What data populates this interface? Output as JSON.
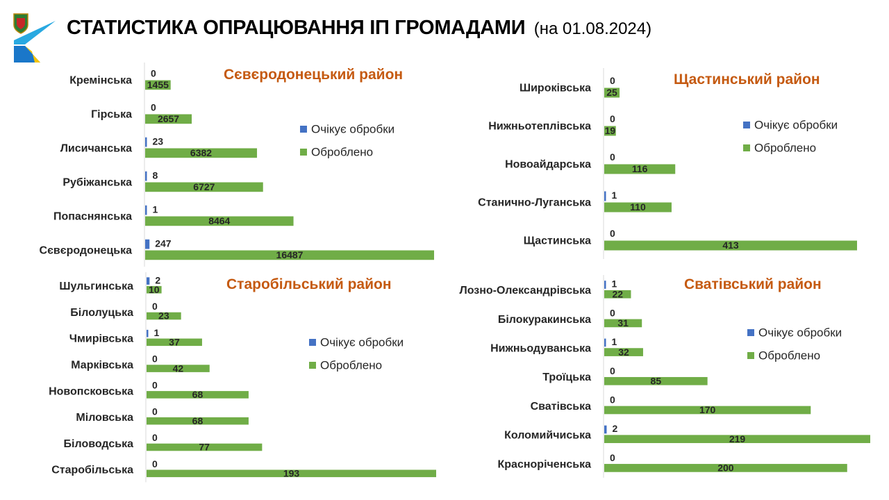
{
  "header": {
    "title": "СТАТИСТИКА ОПРАЦЮВАННЯ ІП ГРОМАДАМИ",
    "date_note": "(на 01.08.2024)"
  },
  "logo": {
    "icon": "regional-emblem-icon"
  },
  "colors": {
    "waiting": "#4472c4",
    "processed": "#70ad47",
    "title": "#c55a11",
    "axis": "#d9d9d9"
  },
  "chart_data": [
    {
      "type": "bar",
      "orientation": "horizontal",
      "title": "Сєвєродонецький район",
      "categories": [
        "Кремінська",
        "Гірська",
        "Лисичанська",
        "Рубіжанська",
        "Попаснянська",
        "Сєвєродонецька"
      ],
      "series": [
        {
          "name": "Очікує обробки",
          "values": [
            0,
            0,
            23,
            8,
            1,
            247
          ]
        },
        {
          "name": "Оброблено",
          "values": [
            1455,
            2657,
            6382,
            6727,
            8464,
            16487
          ]
        }
      ],
      "legend": "right",
      "grid": false
    },
    {
      "type": "bar",
      "orientation": "horizontal",
      "title": "Щастинський район",
      "categories": [
        "Широківська",
        "Нижньотеплівська",
        "Новоайдарська",
        "Станично-Луганська",
        "Щастинська"
      ],
      "series": [
        {
          "name": "Очікує обробки",
          "values": [
            0,
            0,
            0,
            1,
            0
          ]
        },
        {
          "name": "Оброблено",
          "values": [
            25,
            19,
            116,
            110,
            413
          ]
        }
      ],
      "legend": "right",
      "grid": false
    },
    {
      "type": "bar",
      "orientation": "horizontal",
      "title": "Старобільський район",
      "categories": [
        "Шульгинська",
        "Білолуцька",
        "Чмирівська",
        "Марківська",
        "Новопсковська",
        "Міловська",
        "Біловодська",
        "Старобільська"
      ],
      "series": [
        {
          "name": "Очікує обробки",
          "values": [
            2,
            0,
            1,
            0,
            0,
            0,
            0,
            0
          ]
        },
        {
          "name": "Оброблено",
          "values": [
            10,
            23,
            37,
            42,
            68,
            68,
            77,
            193
          ]
        }
      ],
      "legend": "right",
      "grid": false
    },
    {
      "type": "bar",
      "orientation": "horizontal",
      "title": "Сватівський район",
      "categories": [
        "Лозно-Олександрівська",
        "Білокуракинська",
        "Нижньодуванська",
        "Троїцька",
        "Сватівська",
        "Коломийчиська",
        "Красноріченська"
      ],
      "series": [
        {
          "name": "Очікує обробки",
          "values": [
            1,
            0,
            1,
            0,
            0,
            2,
            0
          ]
        },
        {
          "name": "Оброблено",
          "values": [
            22,
            31,
            32,
            85,
            170,
            219,
            200
          ]
        }
      ],
      "legend": "right",
      "grid": false
    }
  ]
}
